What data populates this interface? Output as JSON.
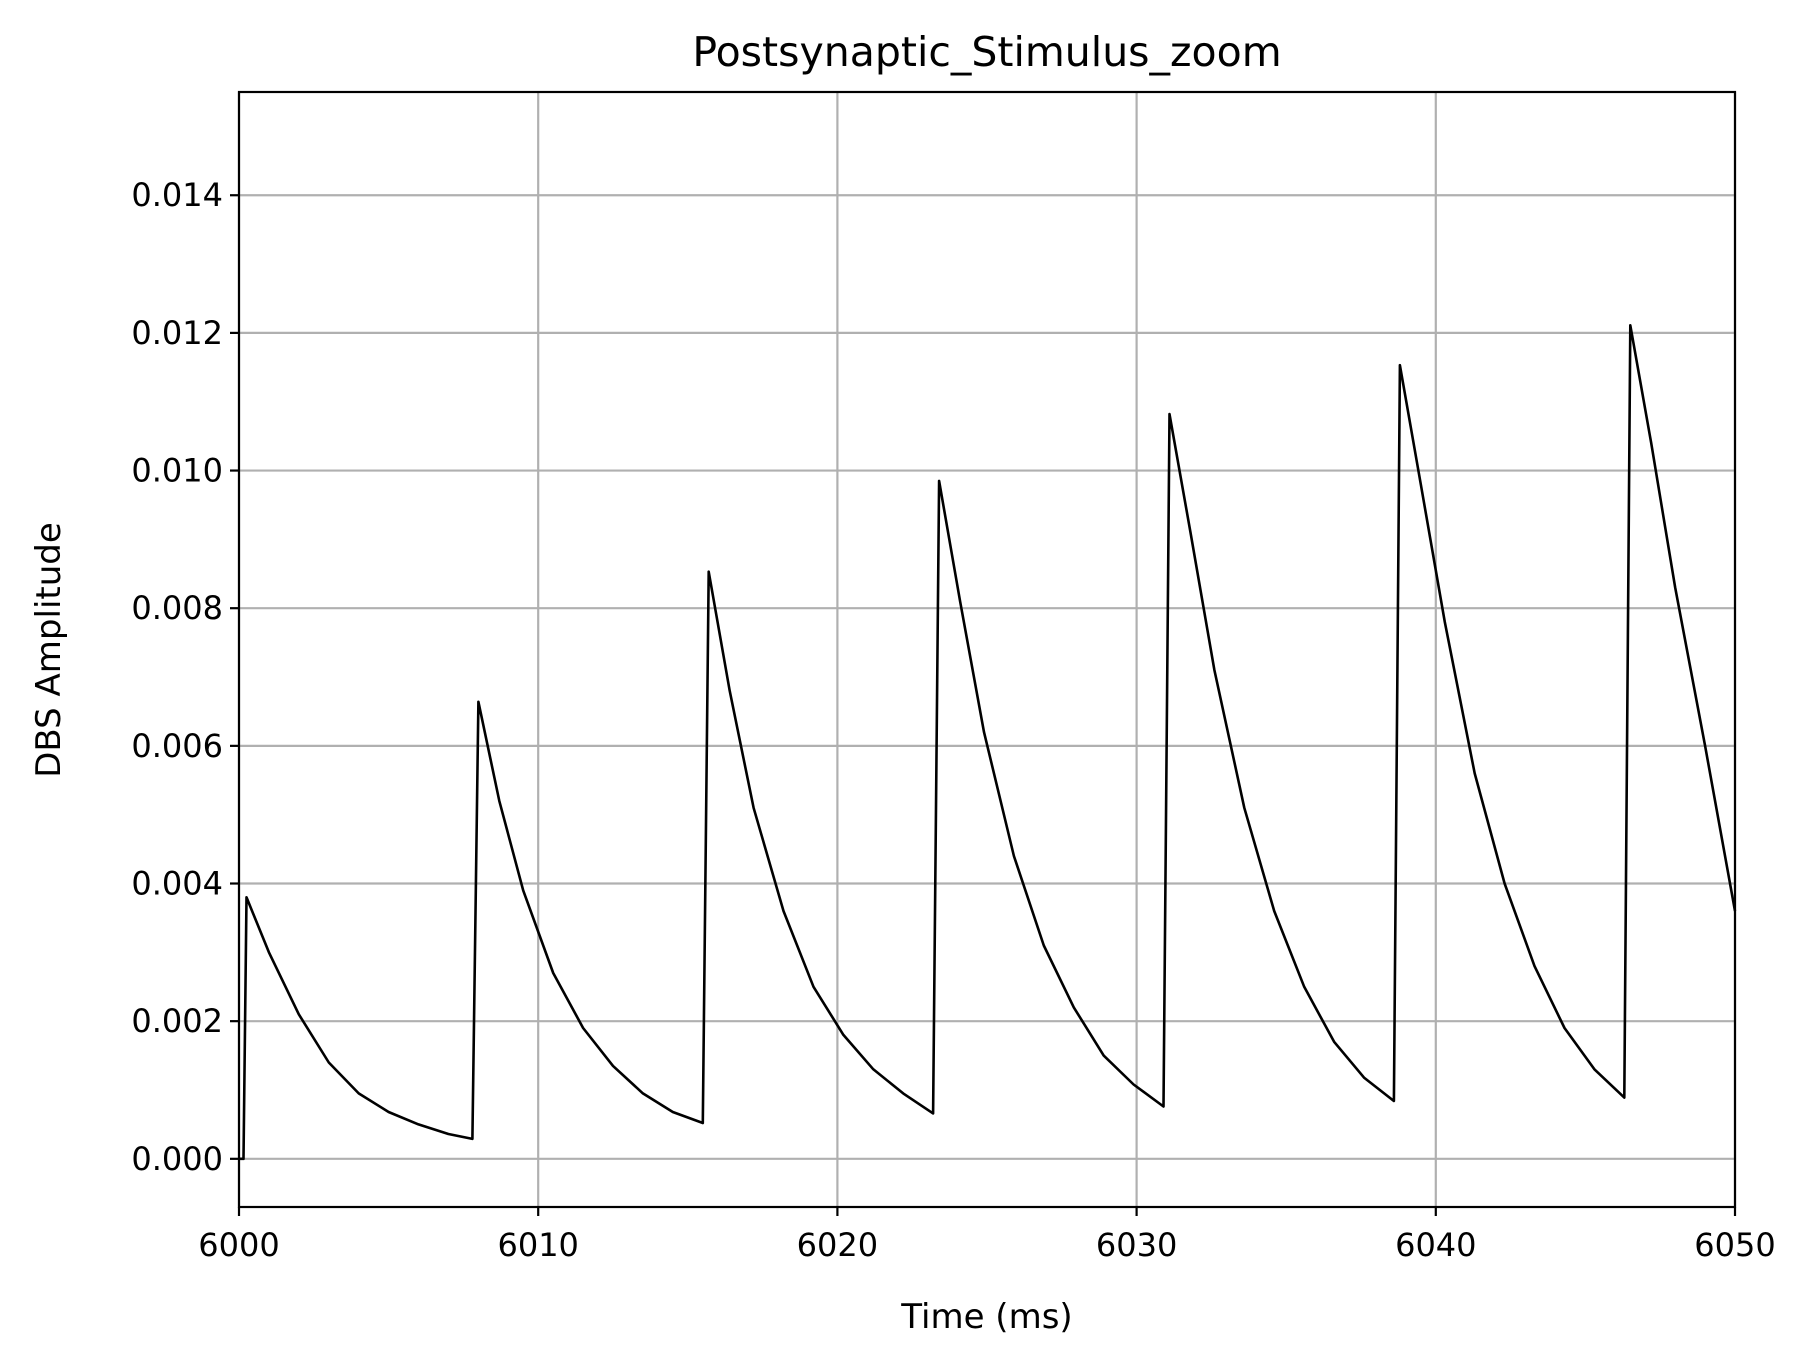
{
  "chart_data": {
    "type": "line",
    "title": "Postsynaptic_Stimulus_zoom",
    "xlabel": "Time (ms)",
    "ylabel": "DBS Amplitude",
    "xlim": [
      6000,
      6050
    ],
    "ylim": [
      -0.0007,
      0.0155
    ],
    "x_ticks": [
      6000,
      6010,
      6020,
      6030,
      6040,
      6050
    ],
    "x_tick_labels": [
      "6000",
      "6010",
      "6020",
      "6030",
      "6040",
      "6050"
    ],
    "y_ticks": [
      0.0,
      0.002,
      0.004,
      0.006,
      0.008,
      0.01,
      0.012,
      0.014
    ],
    "y_tick_labels": [
      "0.000",
      "0.002",
      "0.004",
      "0.006",
      "0.008",
      "0.010",
      "0.012",
      "0.014"
    ],
    "grid": true,
    "line_color": "#000000",
    "series": [
      {
        "x": [
          6000.0,
          6000.05,
          6000.15,
          6000.25,
          6001.0,
          6002.0,
          6003.0,
          6004.0,
          6005.0,
          6006.0,
          6007.0,
          6007.8,
          6008.0,
          6008.7,
          6009.5,
          6010.5,
          6011.5,
          6012.5,
          6013.5,
          6014.5,
          6015.5,
          6015.7,
          6016.4,
          6017.2,
          6018.2,
          6019.2,
          6020.2,
          6021.2,
          6022.2,
          6023.2,
          6023.4,
          6024.1,
          6024.9,
          6025.9,
          6026.9,
          6027.9,
          6028.9,
          6029.9,
          6030.9,
          6031.1,
          6031.8,
          6032.6,
          6033.6,
          6034.6,
          6035.6,
          6036.6,
          6037.6,
          6038.6,
          6038.8,
          6039.5,
          6040.3,
          6041.3,
          6042.3,
          6043.3,
          6044.3,
          6045.3,
          6046.3,
          6046.5,
          6047.2,
          6048.0,
          6049.0,
          6050.0
        ],
        "y": [
          0.0,
          0.0,
          0.0,
          0.0038,
          0.003,
          0.0021,
          0.0014,
          0.00095,
          0.00068,
          0.0005,
          0.00036,
          0.00029,
          0.00664,
          0.0052,
          0.0039,
          0.0027,
          0.0019,
          0.00135,
          0.00095,
          0.00068,
          0.00052,
          0.00853,
          0.0068,
          0.0051,
          0.0036,
          0.0025,
          0.0018,
          0.0013,
          0.00095,
          0.00066,
          0.00985,
          0.0081,
          0.0062,
          0.0044,
          0.0031,
          0.0022,
          0.0015,
          0.00108,
          0.00076,
          0.01082,
          0.0091,
          0.0071,
          0.0051,
          0.0036,
          0.0025,
          0.0017,
          0.00118,
          0.00084,
          0.01153,
          0.0098,
          0.0078,
          0.0056,
          0.004,
          0.0028,
          0.0019,
          0.0013,
          0.00089,
          0.01211,
          0.0104,
          0.0083,
          0.006,
          0.0036
        ]
      }
    ]
  }
}
